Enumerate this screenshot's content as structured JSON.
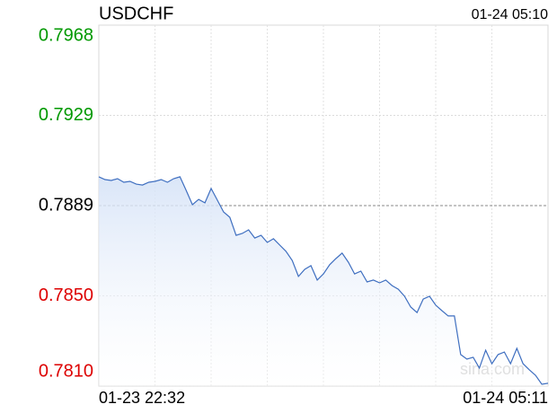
{
  "chart_data": {
    "type": "line",
    "title": "USDCHF",
    "timestamp": "01-24 05:10",
    "watermark": "sina.com",
    "categories": [
      "01-23 22:32",
      null,
      null,
      null,
      null,
      null,
      null,
      null,
      null,
      null,
      null,
      null,
      null,
      null,
      null,
      null,
      null,
      null,
      null,
      null,
      null,
      null,
      null,
      null,
      null,
      null,
      null,
      null,
      null,
      null,
      null,
      null,
      null,
      null,
      null,
      null,
      null,
      null,
      null,
      null,
      null,
      null,
      null,
      null,
      null,
      null,
      null,
      null,
      null,
      null,
      null,
      null,
      null,
      null,
      null,
      null,
      null,
      null,
      null,
      null,
      null,
      null,
      null,
      null,
      null,
      null,
      null,
      null,
      null,
      null,
      null,
      null,
      "01-24 05:11"
    ],
    "series": [
      {
        "name": "USDCHF",
        "color": "#3f6fc0",
        "values": [
          0.79016,
          0.79004,
          0.79,
          0.79008,
          0.78992,
          0.78996,
          0.78984,
          0.7898,
          0.78992,
          0.78996,
          0.79004,
          0.78992,
          0.79008,
          0.79016,
          0.78957,
          0.78894,
          0.78917,
          0.78902,
          0.78965,
          0.78914,
          0.78862,
          0.78839,
          0.7876,
          0.78768,
          0.78784,
          0.78748,
          0.7876,
          0.78729,
          0.78745,
          0.78717,
          0.7869,
          0.7865,
          0.7858,
          0.78611,
          0.78627,
          0.78564,
          0.78591,
          0.78631,
          0.78658,
          0.78682,
          0.78642,
          0.78591,
          0.78603,
          0.78556,
          0.78564,
          0.78552,
          0.78564,
          0.7854,
          0.78524,
          0.78493,
          0.78446,
          0.78422,
          0.78481,
          0.78493,
          0.78454,
          0.7843,
          0.78407,
          0.78407,
          0.78238,
          0.78218,
          0.78226,
          0.78179,
          0.78257,
          0.78198,
          0.78238,
          0.78249,
          0.78198,
          0.78265,
          0.78198,
          0.78171,
          0.78147,
          0.78108,
          0.78112
        ]
      }
    ],
    "ylim": [
      0.781,
      0.7968
    ],
    "yticks": [
      {
        "value": 0.781,
        "label": "0.7810"
      },
      {
        "value": 0.78495,
        "label": "0.7850"
      },
      0.7889,
      {
        "value": 0.79285,
        "label": "0.7929"
      },
      0.7968
    ],
    "grid": true,
    "up_color": "#009900",
    "down_color": "#dd0000",
    "flat_color": "#000000"
  }
}
